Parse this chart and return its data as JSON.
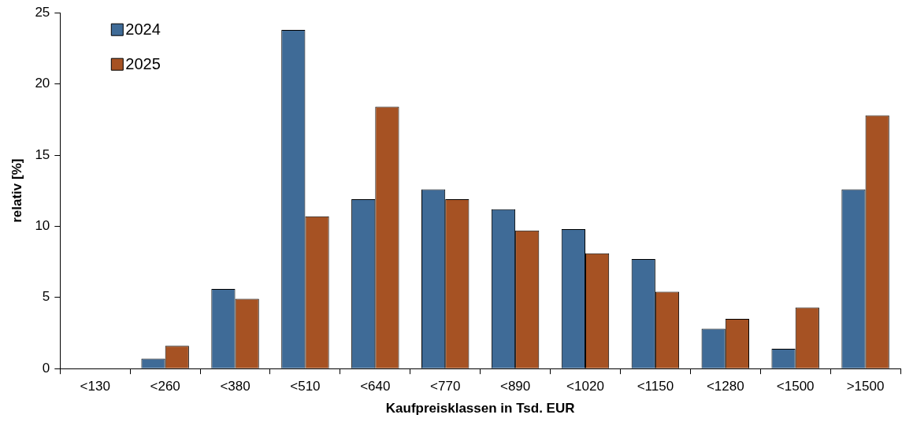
{
  "chart_data": {
    "type": "bar",
    "xlabel": "Kaufpreisklassen in Tsd. EUR",
    "ylabel": "relativ [%]",
    "categories": [
      "<130",
      "<260",
      "<380",
      "<510",
      "<640",
      "<770",
      "<890",
      "<1020",
      "<1150",
      "<1280",
      "<1500",
      ">1500"
    ],
    "series": [
      {
        "name": "2024",
        "color": "#3f6b97",
        "values": [
          0,
          0.7,
          5.6,
          23.8,
          11.9,
          12.6,
          11.2,
          9.8,
          7.7,
          2.8,
          1.4,
          12.6
        ]
      },
      {
        "name": "2025",
        "color": "#a65223",
        "values": [
          0,
          1.6,
          4.9,
          10.7,
          18.4,
          11.9,
          9.7,
          8.1,
          5.4,
          3.5,
          4.3,
          17.8
        ]
      }
    ],
    "ylim": [
      0,
      25
    ],
    "yticks": [
      0,
      5,
      10,
      15,
      20,
      25
    ],
    "grid": false,
    "legend": "top left"
  }
}
